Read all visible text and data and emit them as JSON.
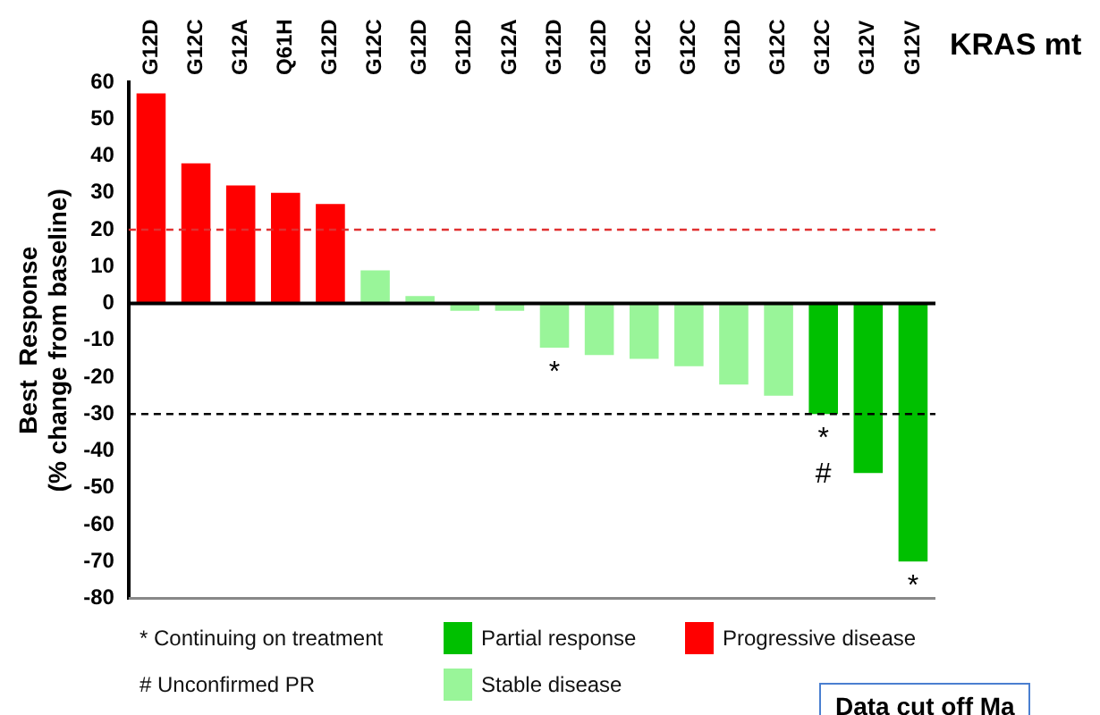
{
  "chart_data": {
    "type": "bar",
    "xlabel": "KRAS mt",
    "ylabel": "Best  Response\n(% change from baseline)",
    "categories": [
      "G12D",
      "G12C",
      "G12A",
      "Q61H",
      "G12D",
      "G12C",
      "G12D",
      "G12D",
      "G12A",
      "G12D",
      "G12D",
      "G12C",
      "G12C",
      "G12D",
      "G12C",
      "G12C",
      "G12V",
      "G12V"
    ],
    "series": [
      {
        "name": "Partial response",
        "color": "#00c000",
        "values": [
          null,
          null,
          null,
          null,
          null,
          null,
          null,
          null,
          null,
          null,
          null,
          null,
          null,
          null,
          null,
          -30,
          -46,
          -70
        ]
      },
      {
        "name": "Progressive disease",
        "color": "#ff0000",
        "values": [
          57,
          38,
          32,
          30,
          27,
          null,
          null,
          null,
          null,
          null,
          null,
          null,
          null,
          null,
          null,
          null,
          null,
          null
        ]
      },
      {
        "name": "Stable disease",
        "color": "#99f599",
        "values": [
          null,
          null,
          null,
          null,
          null,
          9,
          2,
          -2,
          -2,
          -12,
          -14,
          -15,
          -17,
          -22,
          -25,
          null,
          null,
          null
        ]
      }
    ],
    "value_labels": [
      null,
      null,
      null,
      null,
      null,
      null,
      null,
      null,
      null,
      "*",
      null,
      null,
      null,
      null,
      null,
      "*\n#",
      null,
      "*"
    ],
    "ylim": [
      -80,
      60
    ],
    "yticks": [
      -80,
      -70,
      -60,
      -50,
      -40,
      -30,
      -20,
      -10,
      0,
      10,
      20,
      30,
      40,
      50,
      60
    ],
    "ref_lines": [
      {
        "axis": "y",
        "value": 20,
        "color": "#e03030",
        "line_style": "dashed"
      },
      {
        "axis": "y",
        "value": -30,
        "color": "#000000",
        "line_style": "dashed"
      }
    ],
    "annotations": [
      "* Continuing on treatment",
      "# Unconfirmed PR",
      "Data cut off Ma"
    ],
    "legend": "bottom",
    "grid": false
  }
}
